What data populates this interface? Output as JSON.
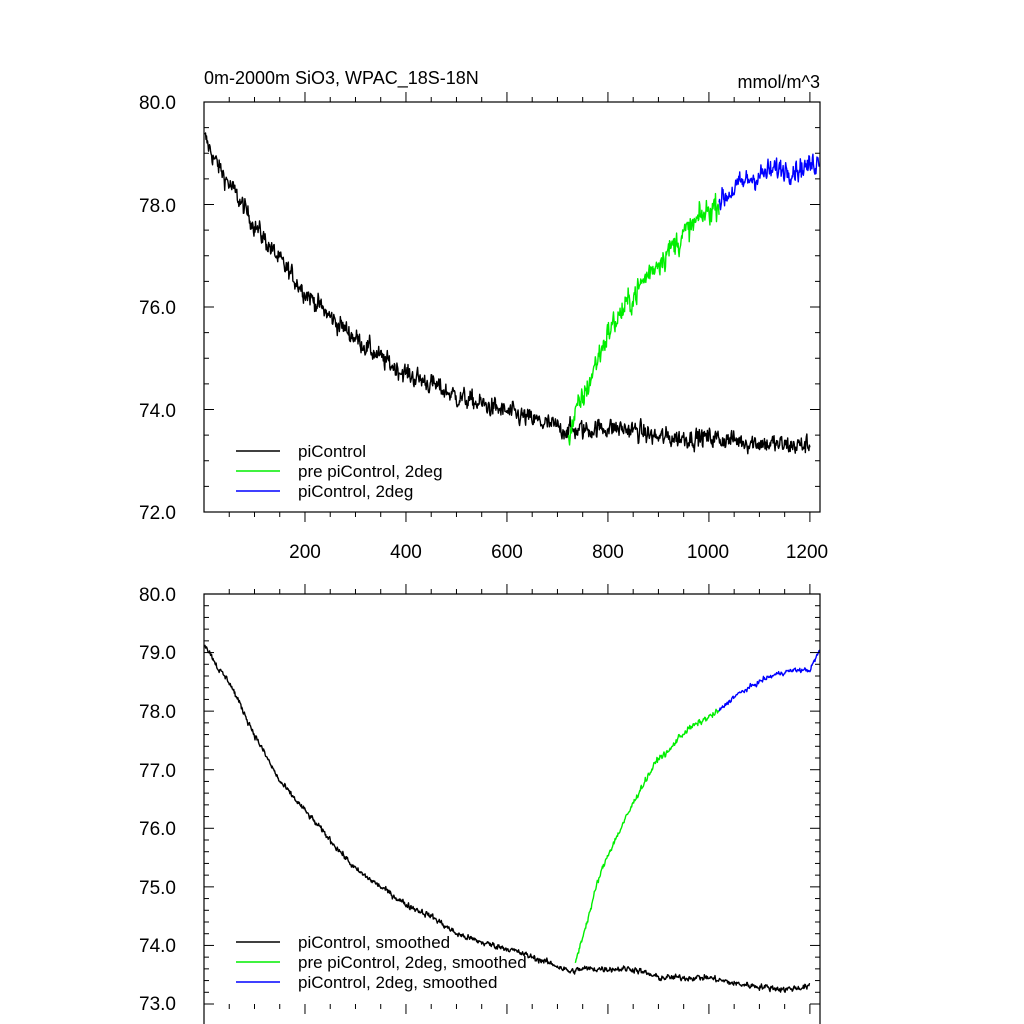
{
  "chart_data": [
    {
      "type": "line",
      "title": "0m-2000m SiO3, WPAC_18S-18N",
      "units": "mmol/m^3",
      "xlabel": "",
      "ylabel": "",
      "xlim": [
        0,
        1220
      ],
      "ylim": [
        72.0,
        80.0
      ],
      "x_ticks": [
        200,
        400,
        600,
        800,
        1000,
        1200
      ],
      "x_tick_labels": [
        "200",
        "400",
        "600",
        "800",
        "1000",
        "1200"
      ],
      "y_ticks": [
        72.0,
        74.0,
        76.0,
        78.0,
        80.0
      ],
      "y_tick_labels": [
        "72.0",
        "74.0",
        "76.0",
        "78.0",
        "80.0"
      ],
      "legend_position": "bottom-left",
      "series": [
        {
          "name": "piControl",
          "color": "#000000",
          "noise": 0.3,
          "x": [
            1,
            25,
            50,
            100,
            150,
            200,
            250,
            300,
            350,
            400,
            450,
            500,
            550,
            600,
            650,
            700,
            720,
            750,
            800,
            850,
            900,
            950,
            1000,
            1050,
            1100,
            1150,
            1200
          ],
          "values": [
            79.3,
            78.8,
            78.4,
            77.6,
            76.9,
            76.3,
            75.8,
            75.4,
            75.0,
            74.7,
            74.5,
            74.25,
            74.1,
            73.95,
            73.8,
            73.65,
            73.6,
            73.6,
            73.65,
            73.6,
            73.45,
            73.45,
            73.45,
            73.4,
            73.35,
            73.3,
            73.3
          ]
        },
        {
          "name": "pre piControl, 2deg",
          "color": "#00ee00",
          "noise": 0.4,
          "x": [
            722,
            740,
            760,
            780,
            800,
            820,
            850,
            880,
            900,
            930,
            960,
            990,
            1020
          ],
          "values": [
            73.5,
            74.0,
            74.45,
            75.0,
            75.5,
            75.8,
            76.2,
            76.65,
            76.9,
            77.2,
            77.5,
            77.8,
            78.05
          ]
        },
        {
          "name": "piControl, 2deg",
          "color": "#0000ff",
          "noise": 0.35,
          "x": [
            1020,
            1050,
            1080,
            1110,
            1140,
            1170,
            1200,
            1220
          ],
          "values": [
            78.05,
            78.3,
            78.5,
            78.6,
            78.7,
            78.7,
            78.75,
            78.9
          ]
        }
      ]
    },
    {
      "type": "line",
      "title": "",
      "xlabel": "",
      "ylabel": "",
      "xlim": [
        0,
        1220
      ],
      "ylim": [
        73.0,
        80.0
      ],
      "x_ticks": [
        200,
        400,
        600,
        800,
        1000,
        1200
      ],
      "y_ticks": [
        73.0,
        74.0,
        75.0,
        76.0,
        77.0,
        78.0,
        79.0,
        80.0
      ],
      "y_tick_labels": [
        "73.0",
        "74.0",
        "75.0",
        "76.0",
        "77.0",
        "78.0",
        "79.0",
        "80.0"
      ],
      "legend_position": "bottom-left",
      "series": [
        {
          "name": "piControl, smoothed",
          "color": "#000000",
          "noise": 0.08,
          "x": [
            1,
            15,
            30,
            50,
            100,
            150,
            200,
            250,
            300,
            350,
            400,
            450,
            500,
            550,
            600,
            650,
            700,
            725,
            750,
            800,
            850,
            900,
            950,
            1000,
            1050,
            1100,
            1150,
            1200
          ],
          "values": [
            79.15,
            78.95,
            78.7,
            78.5,
            77.6,
            76.8,
            76.3,
            75.8,
            75.3,
            75.0,
            74.7,
            74.5,
            74.2,
            74.05,
            73.95,
            73.8,
            73.65,
            73.55,
            73.6,
            73.6,
            73.6,
            73.45,
            73.45,
            73.45,
            73.35,
            73.3,
            73.25,
            73.3
          ]
        },
        {
          "name": "pre piControl, 2deg, smoothed",
          "color": "#00ee00",
          "noise": 0.08,
          "x": [
            735,
            750,
            765,
            780,
            800,
            820,
            840,
            860,
            880,
            900,
            920,
            940,
            960,
            990,
            1020
          ],
          "values": [
            73.7,
            74.15,
            74.6,
            75.1,
            75.55,
            75.9,
            76.25,
            76.6,
            76.9,
            77.2,
            77.3,
            77.55,
            77.7,
            77.85,
            78.0
          ]
        },
        {
          "name": "piControl, 2deg, smoothed",
          "color": "#0000ff",
          "noise": 0.06,
          "x": [
            1020,
            1050,
            1080,
            1110,
            1140,
            1170,
            1200,
            1220
          ],
          "values": [
            78.0,
            78.25,
            78.4,
            78.55,
            78.65,
            78.7,
            78.7,
            79.05
          ]
        }
      ]
    }
  ]
}
